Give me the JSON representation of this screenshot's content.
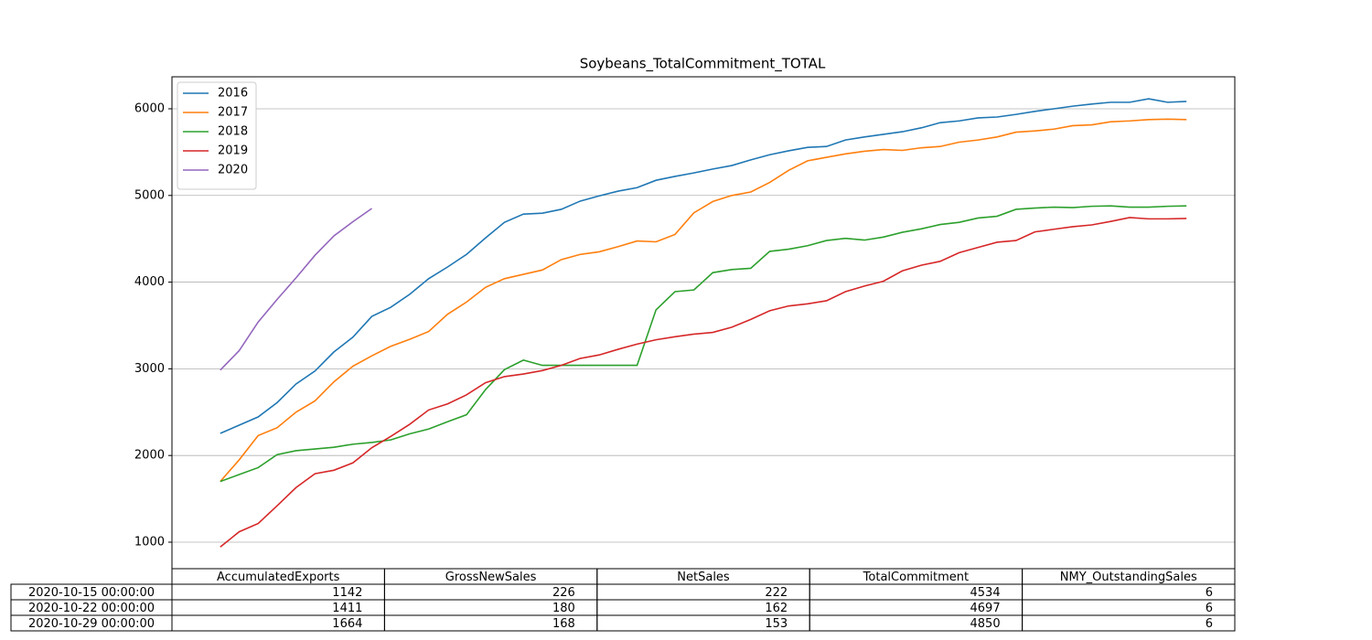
{
  "chart_data": {
    "type": "line",
    "title": "Soybeans_TotalCommitment_TOTAL",
    "xlim": [
      -2.55,
      53.55
    ],
    "ylim": [
      694,
      6369
    ],
    "yticks": [
      1000,
      2000,
      3000,
      4000,
      5000,
      6000
    ],
    "grid": true,
    "legend": "upper left",
    "series": [
      {
        "name": "2016",
        "color": "#1f77b4",
        "values": [
          2255,
          2350,
          2445,
          2610,
          2825,
          2975,
          3195,
          3365,
          3605,
          3710,
          3860,
          4040,
          4175,
          4320,
          4510,
          4690,
          4785,
          4795,
          4840,
          4935,
          4995,
          5050,
          5090,
          5175,
          5220,
          5260,
          5305,
          5345,
          5410,
          5470,
          5515,
          5555,
          5565,
          5640,
          5675,
          5705,
          5735,
          5780,
          5840,
          5860,
          5895,
          5905,
          5935,
          5970,
          6000,
          6030,
          6055,
          6075,
          6075,
          6115,
          6075,
          6085
        ]
      },
      {
        "name": "2017",
        "color": "#ff7f0e",
        "values": [
          1700,
          1950,
          2230,
          2320,
          2500,
          2630,
          2850,
          3030,
          3150,
          3260,
          3340,
          3430,
          3630,
          3770,
          3940,
          4040,
          4090,
          4140,
          4260,
          4320,
          4350,
          4410,
          4475,
          4465,
          4550,
          4800,
          4930,
          5000,
          5040,
          5150,
          5290,
          5400,
          5440,
          5480,
          5510,
          5530,
          5520,
          5550,
          5565,
          5615,
          5640,
          5675,
          5730,
          5745,
          5765,
          5805,
          5815,
          5850,
          5860,
          5875,
          5880,
          5875
        ]
      },
      {
        "name": "2018",
        "color": "#2ca02c",
        "values": [
          1700,
          1780,
          1860,
          2010,
          2055,
          2075,
          2095,
          2130,
          2150,
          2180,
          2250,
          2305,
          2390,
          2470,
          2760,
          2990,
          3100,
          3040,
          3040,
          3040,
          3040,
          3040,
          3040,
          3680,
          3890,
          3910,
          4110,
          4145,
          4160,
          4355,
          4380,
          4420,
          4480,
          4505,
          4485,
          4520,
          4575,
          4615,
          4665,
          4690,
          4740,
          4760,
          4840,
          4855,
          4865,
          4860,
          4875,
          4880,
          4865,
          4865,
          4875,
          4880
        ]
      },
      {
        "name": "2019",
        "color": "#d62728",
        "values": [
          945,
          1120,
          1215,
          1420,
          1630,
          1790,
          1830,
          1915,
          2090,
          2220,
          2360,
          2525,
          2595,
          2700,
          2840,
          2910,
          2940,
          2980,
          3040,
          3120,
          3160,
          3225,
          3285,
          3335,
          3370,
          3400,
          3420,
          3480,
          3570,
          3670,
          3725,
          3750,
          3785,
          3890,
          3955,
          4010,
          4130,
          4195,
          4240,
          4340,
          4400,
          4460,
          4480,
          4580,
          4610,
          4640,
          4660,
          4700,
          4745,
          4730,
          4730,
          4735
        ]
      },
      {
        "name": "2020",
        "color": "#9467bd",
        "values": [
          2985,
          3210,
          3540,
          3800,
          4050,
          4310,
          4534,
          4697,
          4850
        ]
      }
    ]
  },
  "table": {
    "columns": [
      "AccumulatedExports",
      "GrossNewSales",
      "NetSales",
      "TotalCommitment",
      "NMY_OutstandingSales"
    ],
    "rows": [
      {
        "label": "2020-10-15 00:00:00",
        "cells": [
          1142,
          226,
          222,
          4534,
          6
        ]
      },
      {
        "label": "2020-10-22 00:00:00",
        "cells": [
          1411,
          180,
          162,
          4697,
          6
        ]
      },
      {
        "label": "2020-10-29 00:00:00",
        "cells": [
          1664,
          168,
          153,
          4850,
          6
        ]
      }
    ]
  }
}
